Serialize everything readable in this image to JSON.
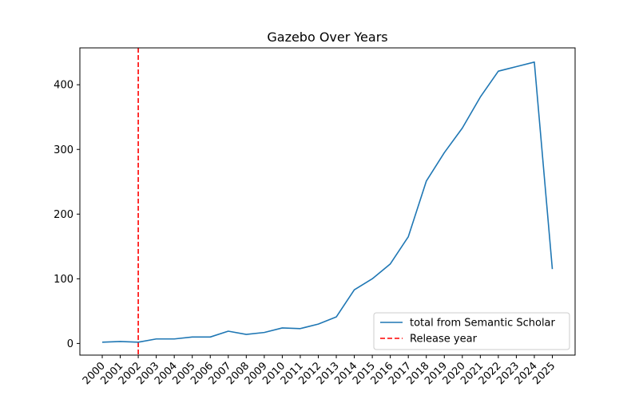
{
  "chart_data": {
    "type": "line",
    "title": "Gazebo Over Years",
    "xlabel": "",
    "ylabel": "",
    "x": [
      "2000",
      "2001",
      "2002",
      "2003",
      "2004",
      "2005",
      "2006",
      "2007",
      "2008",
      "2009",
      "2010",
      "2011",
      "2012",
      "2013",
      "2014",
      "2015",
      "2016",
      "2017",
      "2018",
      "2019",
      "2020",
      "2021",
      "2022",
      "2023",
      "2024",
      "2025"
    ],
    "yticks": [
      0,
      100,
      200,
      300,
      400
    ],
    "ylim": [
      -18,
      457
    ],
    "series": [
      {
        "name": "total from Semantic Scholar",
        "color": "#1f77b4",
        "values": [
          2,
          3,
          2,
          7,
          7,
          10,
          10,
          19,
          14,
          17,
          24,
          23,
          30,
          41,
          83,
          100,
          123,
          165,
          251,
          295,
          333,
          381,
          421,
          428,
          435,
          115
        ]
      }
    ],
    "reference_lines": [
      {
        "name": "Release year",
        "x": "2002",
        "color": "#ff0000",
        "style": "dashed"
      }
    ],
    "legend": "lower-right",
    "grid": false
  }
}
